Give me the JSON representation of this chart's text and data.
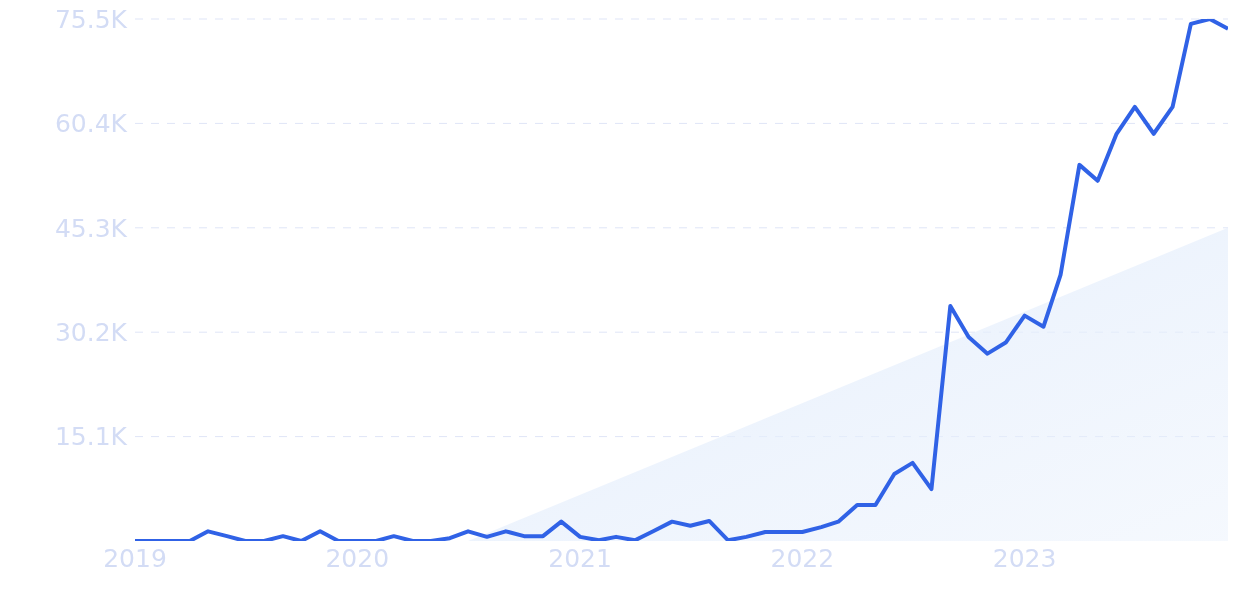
{
  "chart_data": {
    "type": "line",
    "xlim": [
      "2019-01",
      "2023-12"
    ],
    "xticks": [
      {
        "value": "2019-01",
        "label": "2019"
      },
      {
        "value": "2020-01",
        "label": "2020"
      },
      {
        "value": "2021-01",
        "label": "2021"
      },
      {
        "value": "2022-01",
        "label": "2022"
      },
      {
        "value": "2023-01",
        "label": "2023"
      }
    ],
    "ylim": [
      0,
      75500
    ],
    "yticks": [
      {
        "value": 15100,
        "label": "15.1K"
      },
      {
        "value": 30200,
        "label": "30.2K"
      },
      {
        "value": 45300,
        "label": "45.3K"
      },
      {
        "value": 60400,
        "label": "60.4K"
      },
      {
        "value": 75500,
        "label": "75.5K"
      }
    ],
    "grid": "y",
    "marker": "none",
    "line_style": "solid",
    "x": [
      "2019-01",
      "2019-02",
      "2019-03",
      "2019-04",
      "2019-05",
      "2019-06",
      "2019-07",
      "2019-08",
      "2019-09",
      "2019-10",
      "2019-11",
      "2019-12",
      "2020-01",
      "2020-02",
      "2020-03",
      "2020-04",
      "2020-05",
      "2020-06",
      "2020-07",
      "2020-08",
      "2020-09",
      "2020-10",
      "2020-11",
      "2020-12",
      "2021-01",
      "2021-02",
      "2021-03",
      "2021-04",
      "2021-05",
      "2021-06",
      "2021-07",
      "2021-08",
      "2021-09",
      "2021-10",
      "2021-11",
      "2021-12",
      "2022-01",
      "2022-02",
      "2022-03",
      "2022-04",
      "2022-05",
      "2022-06",
      "2022-07",
      "2022-08",
      "2022-09",
      "2022-10",
      "2022-11",
      "2022-12",
      "2023-01",
      "2023-02",
      "2023-03",
      "2023-04",
      "2023-05",
      "2023-06",
      "2023-07",
      "2023-08",
      "2023-09",
      "2023-10",
      "2023-11",
      "2023-12"
    ],
    "series": [
      {
        "type": "area",
        "color": "#e6effc",
        "x": [
          "2020-07",
          "2023-12"
        ],
        "values": [
          0,
          45300
        ]
      },
      {
        "color": "#3062e6",
        "values": [
          0,
          0,
          0,
          0,
          1400,
          700,
          0,
          0,
          700,
          0,
          1400,
          0,
          0,
          0,
          700,
          0,
          0,
          400,
          1400,
          600,
          1400,
          700,
          700,
          2800,
          600,
          100,
          600,
          100,
          1400,
          2800,
          2200,
          2900,
          100,
          600,
          1300,
          1300,
          1300,
          2000,
          2800,
          5200,
          5200,
          9700,
          11300,
          7500,
          34000,
          29500,
          27100,
          28700,
          32600,
          31000,
          38500,
          54400,
          52100,
          58900,
          62800,
          58900,
          62800,
          74800,
          75500,
          74100
        ]
      }
    ]
  }
}
